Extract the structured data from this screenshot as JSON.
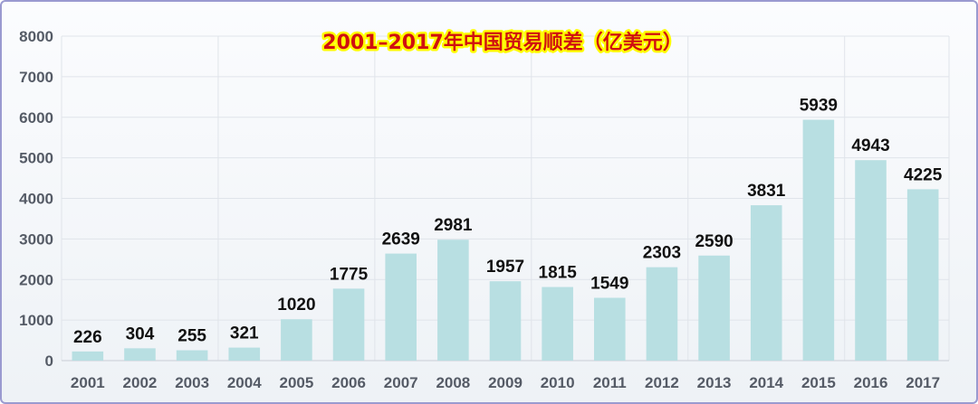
{
  "chart_data": {
    "type": "bar",
    "title": "2001–2017年中国贸易顺差（亿美元）",
    "xlabel": "",
    "ylabel": "",
    "categories": [
      "2001",
      "2002",
      "2003",
      "2004",
      "2005",
      "2006",
      "2007",
      "2008",
      "2009",
      "2010",
      "2011",
      "2012",
      "2013",
      "2014",
      "2015",
      "2016",
      "2017"
    ],
    "values": [
      226,
      304,
      255,
      321,
      1020,
      1775,
      2639,
      2981,
      1957,
      1815,
      1549,
      2303,
      2590,
      3831,
      5939,
      4943,
      4225
    ],
    "ylim": [
      0,
      8000
    ],
    "yticks": [
      0,
      1000,
      2000,
      3000,
      4000,
      5000,
      6000,
      7000,
      8000
    ],
    "grid": true,
    "data_labels": true,
    "colors": {
      "bar": "#b8dfe2",
      "title_text": "#d01010",
      "title_outline": "#ffff00",
      "frame_border": "#9a9ad0",
      "grid": "#e0e4ea",
      "tick_text": "#555b66",
      "value_text": "#111111"
    }
  }
}
